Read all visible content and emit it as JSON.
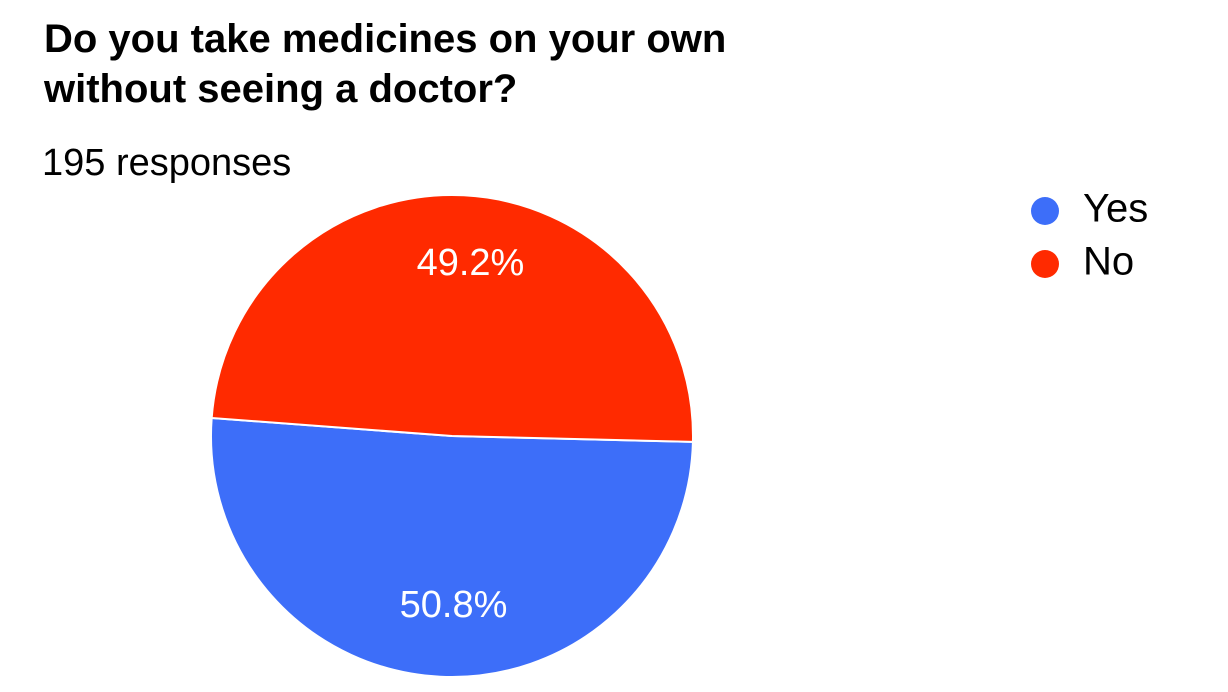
{
  "chart_data": {
    "type": "pie",
    "title": "Do you take medicines on your own without seeing a doctor?",
    "subtitle": "195 responses",
    "categories": [
      "Yes",
      "No"
    ],
    "values": [
      50.8,
      49.2
    ],
    "value_labels": [
      "50.8%",
      "49.2%"
    ],
    "colors": [
      "#3d6ef9",
      "#ff2a00"
    ],
    "legend": "right"
  }
}
